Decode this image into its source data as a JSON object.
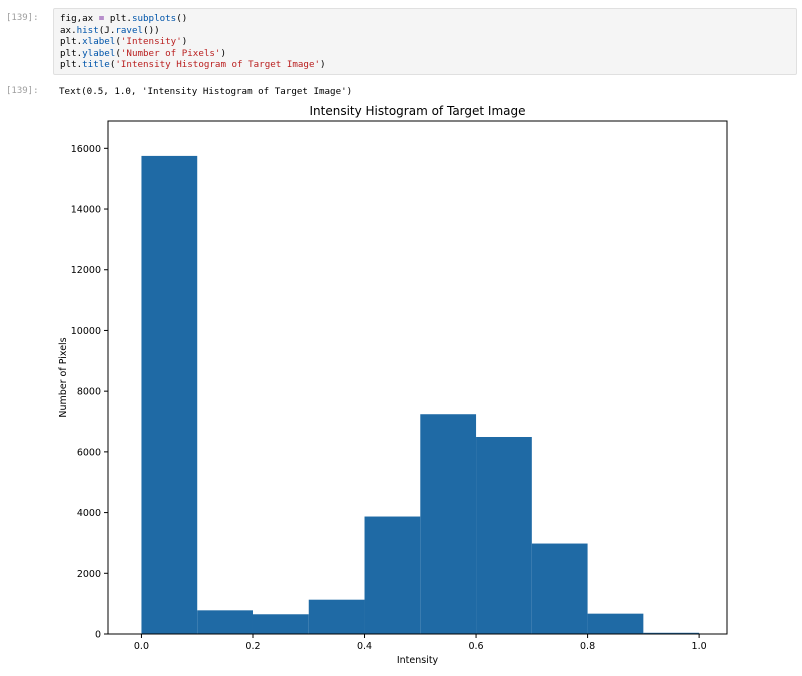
{
  "notebook": {
    "input_prompt": "[139]:",
    "output_prompt": "[139]:",
    "code_lines": [
      [
        {
          "t": "fig,ax ",
          "c": ""
        },
        {
          "t": "=",
          "c": "kw"
        },
        {
          "t": " plt.",
          "c": ""
        },
        {
          "t": "subplots",
          "c": "fn"
        },
        {
          "t": "()",
          "c": ""
        }
      ],
      [
        {
          "t": "ax.",
          "c": ""
        },
        {
          "t": "hist",
          "c": "fn"
        },
        {
          "t": "(J.",
          "c": ""
        },
        {
          "t": "ravel",
          "c": "fn"
        },
        {
          "t": "())",
          "c": ""
        }
      ],
      [
        {
          "t": "plt.",
          "c": ""
        },
        {
          "t": "xlabel",
          "c": "fn"
        },
        {
          "t": "(",
          "c": ""
        },
        {
          "t": "'Intensity'",
          "c": "str"
        },
        {
          "t": ")",
          "c": ""
        }
      ],
      [
        {
          "t": "plt.",
          "c": ""
        },
        {
          "t": "ylabel",
          "c": "fn"
        },
        {
          "t": "(",
          "c": ""
        },
        {
          "t": "'Number of Pixels'",
          "c": "str"
        },
        {
          "t": ")",
          "c": ""
        }
      ],
      [
        {
          "t": "plt.",
          "c": ""
        },
        {
          "t": "title",
          "c": "fn"
        },
        {
          "t": "(",
          "c": ""
        },
        {
          "t": "'Intensity Histogram of Target Image'",
          "c": "str"
        },
        {
          "t": ")",
          "c": ""
        }
      ]
    ],
    "output_text": "Text(0.5, 1.0, 'Intensity Histogram of Target Image')"
  },
  "colors": {
    "bar": "#1f6aa5",
    "keyword": "#7928a1",
    "function": "#0055aa",
    "string": "#ba2121"
  },
  "chart_data": {
    "type": "bar",
    "title": "Intensity Histogram of Target Image",
    "xlabel": "Intensity",
    "ylabel": "Number of Pixels",
    "bin_edges": [
      0.0,
      0.1,
      0.2,
      0.3,
      0.4,
      0.5,
      0.6,
      0.7,
      0.8,
      0.9,
      1.0
    ],
    "values": [
      15750,
      780,
      650,
      1130,
      3870,
      7240,
      6490,
      2980,
      670,
      40
    ],
    "xlim": [
      -0.06,
      1.05
    ],
    "ylim": [
      0,
      16900
    ],
    "xticks": [
      0.0,
      0.2,
      0.4,
      0.6,
      0.8,
      1.0
    ],
    "xtick_labels": [
      "0.0",
      "0.2",
      "0.4",
      "0.6",
      "0.8",
      "1.0"
    ],
    "yticks": [
      0,
      2000,
      4000,
      6000,
      8000,
      10000,
      12000,
      14000,
      16000
    ],
    "ytick_labels": [
      "0",
      "2000",
      "4000",
      "6000",
      "8000",
      "10000",
      "12000",
      "14000",
      "16000"
    ],
    "grid": false
  }
}
